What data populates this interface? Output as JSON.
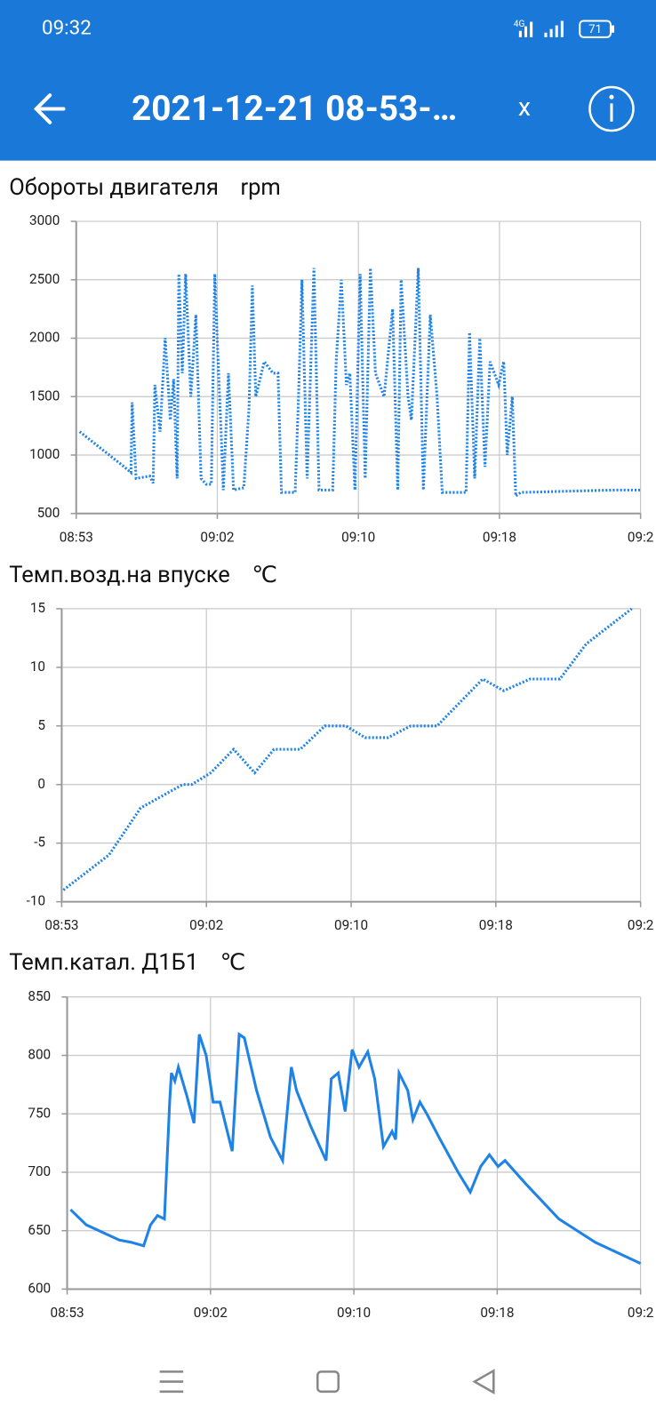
{
  "status_bar": {
    "time": "09:32",
    "network": "4G",
    "battery": "71"
  },
  "header": {
    "title": "2021-12-21 08-53-…",
    "close": "x"
  },
  "chart_data": [
    {
      "type": "line",
      "title": "Обороты двигателя",
      "unit": "rpm",
      "color": "#1e82e6",
      "line_style": "dotted",
      "grid": true,
      "x": [
        0.2,
        1.5,
        2.8,
        3.2,
        3.27,
        3.5,
        4.3,
        4.5,
        4.6,
        4.9,
        5.2,
        5.5,
        5.7,
        5.9,
        6.0,
        6.2,
        6.4,
        6.7,
        7.0,
        7.3,
        7.6,
        7.9,
        8.1,
        8.3,
        8.5,
        8.6,
        8.9,
        9.2,
        9.8,
        10.1,
        10.3,
        10.5,
        11.0,
        11.5,
        11.8,
        12.0,
        12.8,
        13.0,
        13.2,
        13.5,
        13.9,
        14.2,
        15.0,
        15.2,
        15.5,
        15.8,
        16.0,
        16.3,
        16.6,
        16.9,
        17.2,
        17.5,
        18.0,
        18.5,
        18.8,
        19.0,
        19.4,
        19.6,
        20.0,
        20.3,
        20.7,
        21.1,
        21.4,
        22.8,
        23.0,
        23.3,
        23.6,
        23.9,
        24.2,
        24.7,
        25.0,
        25.2,
        25.5,
        25.7,
        26.0,
        28.7,
        31.5,
        33.0
      ],
      "values": [
        1200,
        1050,
        900,
        850,
        1450,
        800,
        820,
        760,
        1600,
        1200,
        2000,
        1300,
        1650,
        800,
        2550,
        1700,
        2550,
        1500,
        2200,
        800,
        750,
        750,
        2550,
        1800,
        1100,
        700,
        1700,
        700,
        720,
        1400,
        2450,
        1500,
        1800,
        1700,
        1700,
        680,
        680,
        1500,
        2500,
        800,
        2600,
        700,
        700,
        1800,
        2500,
        1600,
        1700,
        700,
        2550,
        800,
        2600,
        1700,
        1500,
        2250,
        700,
        2500,
        1500,
        1300,
        2600,
        700,
        2200,
        1500,
        680,
        680,
        2050,
        800,
        2000,
        900,
        1800,
        1600,
        1800,
        1000,
        1500,
        650,
        680,
        690,
        700,
        700
      ],
      "xlim": [
        0,
        33
      ],
      "xticks": [
        {
          "value": 0,
          "label": "08:53"
        },
        {
          "value": 8.25,
          "label": "09:02"
        },
        {
          "value": 16.5,
          "label": "09:10"
        },
        {
          "value": 24.75,
          "label": "09:18"
        },
        {
          "value": 33,
          "label": "09:2"
        }
      ],
      "ylim": [
        500,
        3000
      ],
      "yticks": [
        500,
        1000,
        1500,
        2000,
        2500,
        3000
      ]
    },
    {
      "type": "line",
      "title": "Темп.возд.на впуске",
      "unit": "℃",
      "color": "#1e82e6",
      "line_style": "dotted",
      "grid": true,
      "x": [
        0.1,
        2.7,
        4.5,
        6.9,
        7.4,
        8.5,
        9.8,
        11.0,
        12.1,
        13.6,
        15.0,
        16.2,
        17.3,
        18.6,
        19.9,
        21.4,
        24.0,
        25.2,
        26.7,
        28.4,
        29.9,
        32.5
      ],
      "values": [
        -9,
        -6,
        -2,
        0,
        0,
        1,
        3,
        1,
        3,
        3,
        5,
        5,
        4,
        4,
        5,
        5,
        9,
        8,
        9,
        9,
        12,
        15
      ],
      "xlim": [
        0,
        33
      ],
      "xticks": [
        {
          "value": 0,
          "label": "08:53"
        },
        {
          "value": 8.25,
          "label": "09:02"
        },
        {
          "value": 16.5,
          "label": "09:10"
        },
        {
          "value": 24.75,
          "label": "09:18"
        },
        {
          "value": 33,
          "label": "09:2"
        }
      ],
      "ylim": [
        -10,
        15
      ],
      "yticks": [
        -10,
        -5,
        0,
        5,
        10,
        15
      ]
    },
    {
      "type": "line",
      "title": "Темп.катал. Д1Б1",
      "unit": "℃",
      "color": "#1e82e6",
      "line_style": "solid",
      "grid": true,
      "x": [
        0.2,
        1.1,
        3.0,
        3.7,
        4.4,
        4.8,
        5.2,
        5.6,
        5.9,
        6.0,
        6.2,
        6.4,
        6.9,
        7.3,
        7.6,
        8.0,
        8.4,
        8.8,
        9.5,
        9.9,
        10.2,
        10.9,
        11.7,
        12.4,
        12.9,
        13.2,
        14.0,
        14.9,
        15.2,
        15.6,
        16.0,
        16.4,
        16.8,
        17.3,
        17.7,
        18.2,
        18.7,
        18.9,
        19.1,
        19.6,
        19.9,
        20.3,
        20.7,
        21.4,
        22.5,
        23.2,
        23.8,
        24.3,
        24.8,
        25.2,
        26.4,
        28.3,
        30.4,
        33.0
      ],
      "values": [
        668,
        655,
        642,
        640,
        637,
        655,
        663,
        660,
        760,
        785,
        778,
        790,
        765,
        742,
        818,
        800,
        760,
        760,
        718,
        818,
        815,
        770,
        730,
        710,
        790,
        770,
        740,
        710,
        780,
        785,
        752,
        805,
        790,
        803,
        780,
        722,
        735,
        728,
        785,
        770,
        745,
        760,
        750,
        730,
        700,
        683,
        705,
        715,
        705,
        710,
        690,
        660,
        640,
        622
      ],
      "xlim": [
        0,
        33
      ],
      "xticks": [
        {
          "value": 0,
          "label": "08:53"
        },
        {
          "value": 8.25,
          "label": "09:02"
        },
        {
          "value": 16.5,
          "label": "09:10"
        },
        {
          "value": 24.75,
          "label": "09:18"
        },
        {
          "value": 33,
          "label": "09:2"
        }
      ],
      "ylim": [
        600,
        850
      ],
      "yticks": [
        600,
        650,
        700,
        750,
        800,
        850
      ]
    }
  ]
}
